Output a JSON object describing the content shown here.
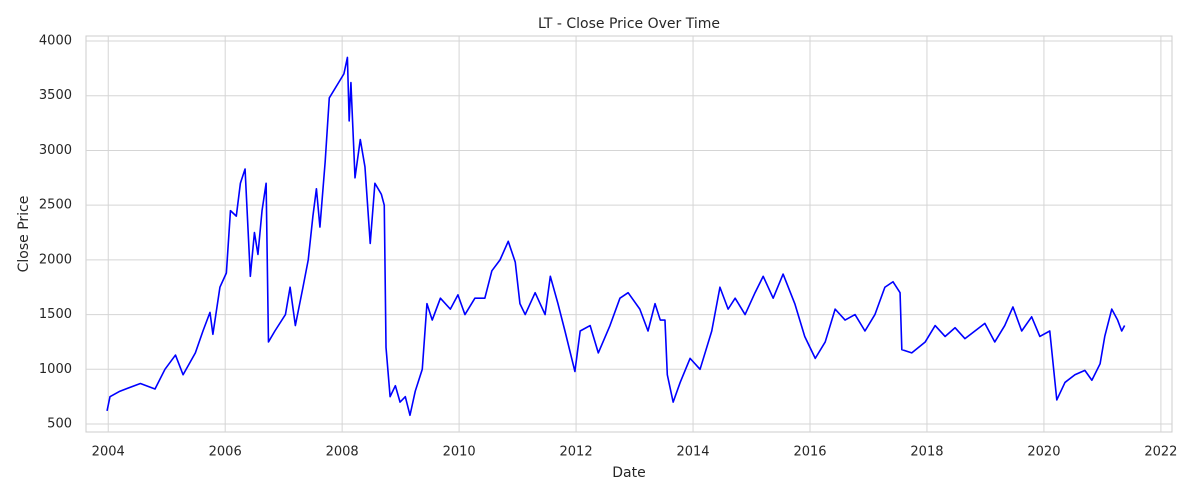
{
  "chart_data": {
    "type": "line",
    "title": "LT - Close Price Over Time",
    "x_label": "Date",
    "y_label": "Close Price",
    "x": [
      2003.98,
      2004.03,
      2004.2,
      2004.55,
      2004.8,
      2004.97,
      2005.15,
      2005.28,
      2005.49,
      2005.62,
      2005.74,
      2005.79,
      2005.91,
      2006.02,
      2006.09,
      2006.19,
      2006.26,
      2006.34,
      2006.43,
      2006.5,
      2006.56,
      2006.63,
      2006.7,
      2006.74,
      2006.85,
      2007.03,
      2007.11,
      2007.2,
      2007.33,
      2007.42,
      2007.5,
      2007.56,
      2007.62,
      2007.71,
      2007.78,
      2008.03,
      2008.09,
      2008.12,
      2008.15,
      2008.22,
      2008.31,
      2008.39,
      2008.48,
      2008.56,
      2008.67,
      2008.72,
      2008.75,
      2008.82,
      2008.91,
      2008.99,
      2009.08,
      2009.16,
      2009.25,
      2009.37,
      2009.45,
      2009.54,
      2009.68,
      2009.85,
      2009.98,
      2010.1,
      2010.27,
      2010.44,
      2010.56,
      2010.7,
      2010.84,
      2010.96,
      2011.04,
      2011.13,
      2011.3,
      2011.47,
      2011.56,
      2011.69,
      2011.81,
      2011.98,
      2012.07,
      2012.24,
      2012.38,
      2012.58,
      2012.75,
      2012.89,
      2013.09,
      2013.23,
      2013.35,
      2013.44,
      2013.52,
      2013.56,
      2013.66,
      2013.78,
      2013.95,
      2014.12,
      2014.32,
      2014.46,
      2014.6,
      2014.72,
      2014.89,
      2015.06,
      2015.2,
      2015.37,
      2015.54,
      2015.74,
      2015.91,
      2016.09,
      2016.26,
      2016.43,
      2016.6,
      2016.77,
      2016.94,
      2017.11,
      2017.28,
      2017.42,
      2017.54,
      2017.57,
      2017.74,
      2017.97,
      2018.14,
      2018.31,
      2018.48,
      2018.65,
      2018.82,
      2018.99,
      2019.16,
      2019.33,
      2019.47,
      2019.62,
      2019.79,
      2019.93,
      2020.1,
      2020.22,
      2020.36,
      2020.53,
      2020.7,
      2020.82,
      2020.96,
      2021.04,
      2021.16,
      2021.26,
      2021.33,
      2021.38
    ],
    "values": [
      620,
      750,
      800,
      870,
      820,
      1000,
      1130,
      950,
      1150,
      1350,
      1520,
      1320,
      1750,
      1880,
      2450,
      2400,
      2700,
      2830,
      1850,
      2250,
      2050,
      2450,
      2700,
      1250,
      1350,
      1500,
      1750,
      1400,
      1750,
      2000,
      2400,
      2650,
      2300,
      2900,
      3480,
      3700,
      3850,
      3270,
      3620,
      2750,
      3100,
      2850,
      2150,
      2700,
      2600,
      2500,
      1200,
      750,
      850,
      700,
      750,
      580,
      800,
      1000,
      1600,
      1450,
      1650,
      1550,
      1680,
      1500,
      1650,
      1650,
      1900,
      2000,
      2170,
      1980,
      1600,
      1500,
      1700,
      1500,
      1850,
      1600,
      1350,
      980,
      1350,
      1400,
      1150,
      1400,
      1650,
      1700,
      1550,
      1350,
      1600,
      1450,
      1450,
      950,
      700,
      880,
      1100,
      1000,
      1350,
      1750,
      1550,
      1650,
      1500,
      1700,
      1850,
      1650,
      1870,
      1600,
      1300,
      1100,
      1250,
      1550,
      1450,
      1500,
      1350,
      1500,
      1750,
      1800,
      1700,
      1180,
      1150,
      1250,
      1400,
      1300,
      1380,
      1280,
      1350,
      1420,
      1250,
      1400,
      1570,
      1350,
      1480,
      1300,
      1350,
      720,
      880,
      950,
      990,
      900,
      1050,
      1300,
      1550,
      1450,
      1350,
      1400
    ],
    "color": "#0000ff",
    "xlim": [
      2003.62,
      2022.19
    ],
    "xticks": [
      2004,
      2006,
      2008,
      2010,
      2012,
      2014,
      2016,
      2018,
      2020,
      2022
    ],
    "ylim": [
      427,
      4046
    ],
    "yticks": [
      500,
      1000,
      1500,
      2000,
      2500,
      3000,
      3500,
      4000
    ],
    "grid": true
  }
}
